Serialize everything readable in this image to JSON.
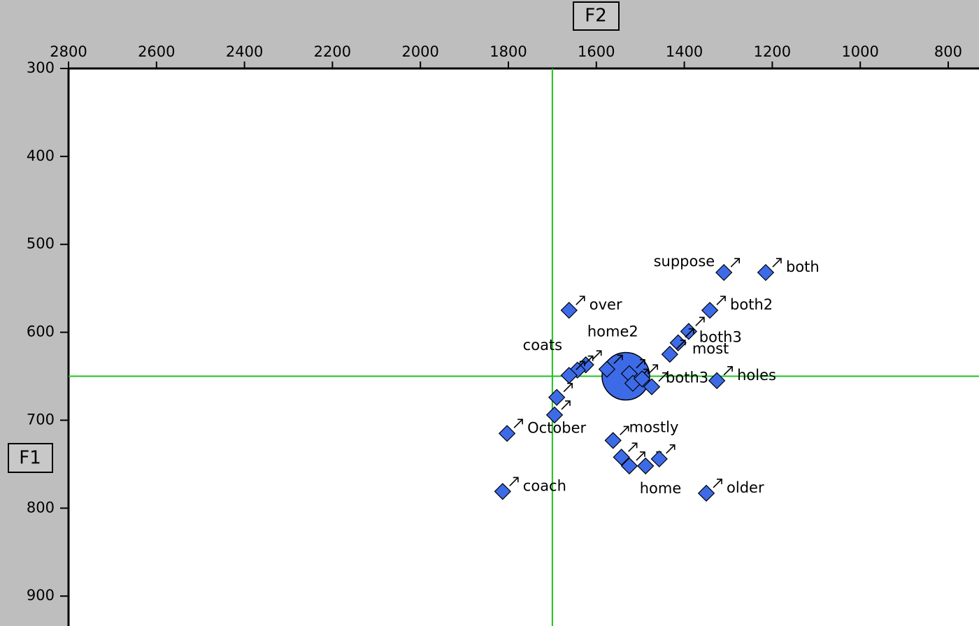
{
  "chart_data": {
    "type": "scatter",
    "x_label": "F2",
    "y_label": "F1",
    "xlim": [
      2800,
      730
    ],
    "ylim": [
      300,
      934
    ],
    "xticks": [
      2800,
      2600,
      2400,
      2200,
      2000,
      1800,
      1600,
      1400,
      1200,
      1000,
      800
    ],
    "yticks": [
      300,
      400,
      500,
      600,
      700,
      800,
      900
    ],
    "crosshair": {
      "x": 1700,
      "y": 650,
      "color": "#1fc01f"
    },
    "highlight": {
      "x": 1533,
      "y": 650
    },
    "series": [
      {
        "color": "#3d6be8",
        "x": [
          1215,
          1310,
          1342,
          1662,
          1390,
          1414,
          1433,
          1326,
          1624,
          1643,
          1662,
          1690,
          1695,
          1803,
          1813,
          1562,
          1543,
          1525,
          1488,
          1457,
          1350,
          1576,
          1525,
          1517,
          1496,
          1474
        ],
        "y": [
          532,
          532,
          575,
          575,
          599,
          612,
          625,
          655,
          637,
          643,
          649,
          674,
          694,
          715,
          781,
          723,
          742,
          752,
          752,
          744,
          783,
          642,
          647,
          658,
          653,
          662
        ],
        "labels": [
          "both",
          "suppose",
          "both2",
          "over",
          null,
          "both3",
          "most",
          "holes",
          "coats",
          null,
          null,
          null,
          null,
          "October",
          "coach",
          "mostly",
          null,
          null,
          null,
          "home",
          "older",
          "home2",
          null,
          null,
          null,
          "both3"
        ]
      }
    ]
  }
}
